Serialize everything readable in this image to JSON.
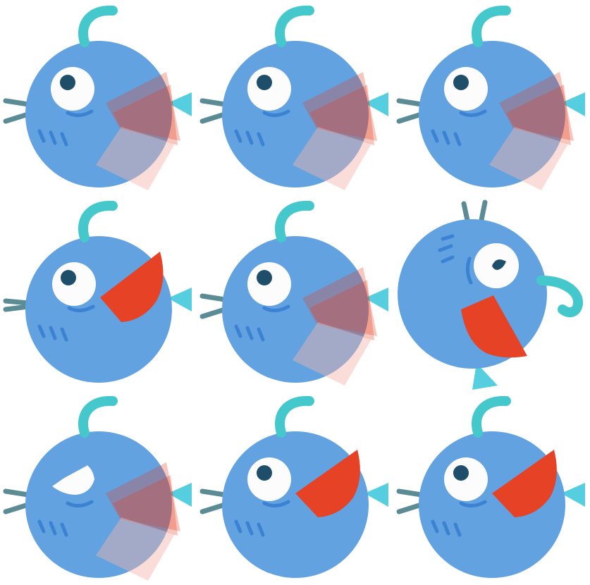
{
  "sprite_sheet": {
    "columns": 3,
    "rows": 3,
    "frames": [
      {
        "pose": "side",
        "beak": "blur",
        "eye": "open"
      },
      {
        "pose": "side",
        "beak": "blur",
        "eye": "open"
      },
      {
        "pose": "side",
        "beak": "blur",
        "eye": "open"
      },
      {
        "pose": "side",
        "beak": "open",
        "eye": "open"
      },
      {
        "pose": "side",
        "beak": "blur",
        "eye": "open"
      },
      {
        "pose": "tumble",
        "beak": "open",
        "eye": "open"
      },
      {
        "pose": "side",
        "beak": "blur",
        "eye": "squint"
      },
      {
        "pose": "side",
        "beak": "open",
        "eye": "open"
      },
      {
        "pose": "side",
        "beak": "open",
        "eye": "open"
      }
    ]
  },
  "colors": {
    "body": "#62a2e1",
    "body_marks": "#3c82d2",
    "antenna": "#45c8cc",
    "tail": "#55cfe0",
    "legs": "#5b8c95",
    "beak": "#e64225",
    "eye_white": "#fcfcfc",
    "pupil": "#1f4e6b"
  },
  "icons": {
    "antenna": "antenna-icon",
    "eye": "eye-icon",
    "beak": "beak-icon",
    "tail": "tail-fin-icon",
    "legs": "legs-icon"
  }
}
